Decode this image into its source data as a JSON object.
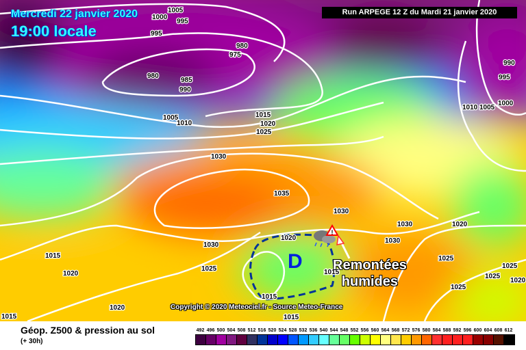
{
  "header": {
    "date": "Mercredi 22 janvier 2020",
    "time": "19:00 locale",
    "run": "Run ARPEGE 12 Z du Mardi 21 janvier 2020"
  },
  "annotations": {
    "low_symbol": "D",
    "remontees_line1": "Remontées",
    "remontees_line2": "humides",
    "copyright": "Copyright © 2020 Meteociel.fr - Source Meteo-France",
    "icons": [
      "storm-cloud-icon",
      "warning-triangle-icon",
      "red-arrow-icon"
    ]
  },
  "isobar_labels": [
    "995",
    "1000",
    "1005",
    "995",
    "980",
    "975",
    "980",
    "985",
    "990",
    "1005",
    "1010",
    "1015",
    "1020",
    "1025",
    "1030",
    "1035",
    "1030",
    "1030",
    "1020",
    "1030",
    "1020",
    "1030",
    "1015",
    "1020",
    "1025",
    "1015",
    "1015",
    "1020",
    "1015",
    "1015",
    "990",
    "995",
    "1010",
    "1005",
    "1000",
    "1025",
    "1025",
    "1025",
    "1025",
    "1020"
  ],
  "footer": {
    "title": "Géop. Z500 & pression au sol",
    "subtitle": "(+ 30h)"
  },
  "legend": {
    "values": [
      "492",
      "496",
      "500",
      "504",
      "508",
      "512",
      "516",
      "520",
      "524",
      "528",
      "532",
      "536",
      "540",
      "544",
      "548",
      "552",
      "556",
      "560",
      "564",
      "568",
      "572",
      "576",
      "580",
      "584",
      "588",
      "592",
      "596",
      "600",
      "604",
      "608",
      "612"
    ],
    "colors": [
      "#3d0040",
      "#660066",
      "#a000a0",
      "#801880",
      "#600040",
      "#303060",
      "#003399",
      "#0000cc",
      "#0000ff",
      "#0055ff",
      "#0099ff",
      "#33ccff",
      "#66ffff",
      "#66ff99",
      "#66ff66",
      "#66ff00",
      "#ccff00",
      "#ffff00",
      "#ffff80",
      "#ffe64d",
      "#ffcc00",
      "#ff9900",
      "#ff6600",
      "#ff3030",
      "#ff2020",
      "#ff2020",
      "#ff2020",
      "#990000",
      "#880000",
      "#551100",
      "#000000"
    ]
  }
}
